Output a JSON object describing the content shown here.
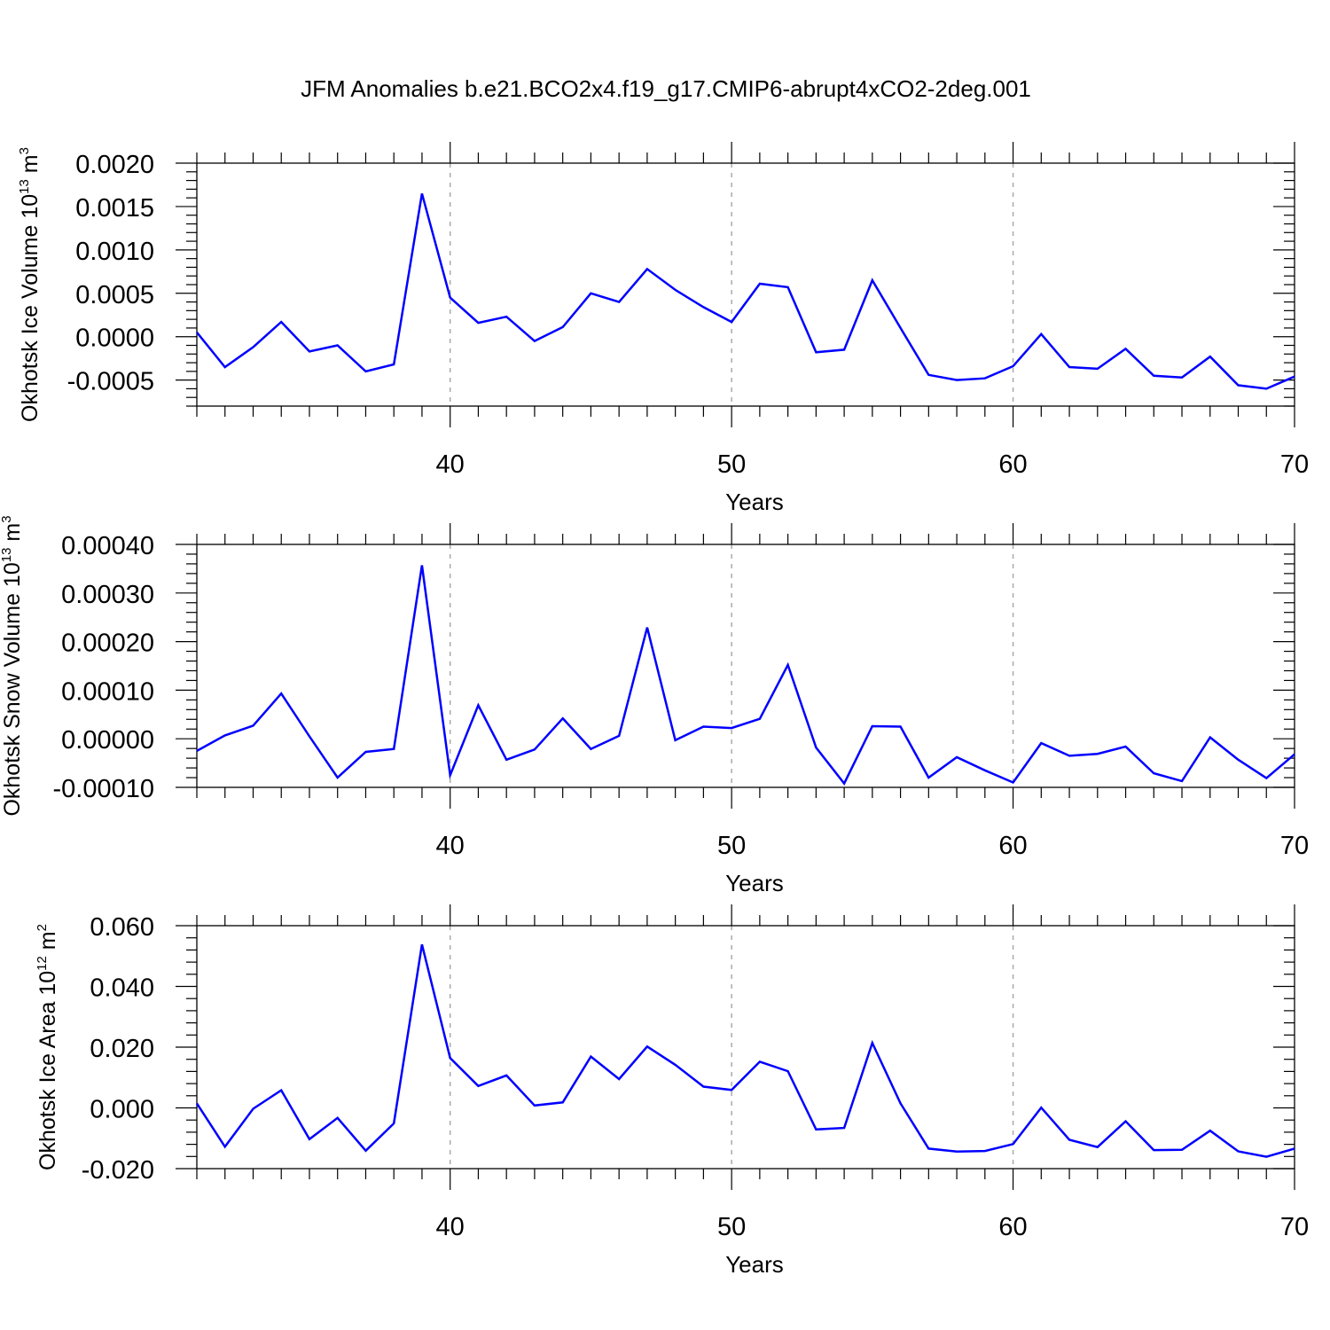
{
  "figure": {
    "title": "JFM Anomalies b.e21.BCO2x4.f19_g17.CMIP6-abrupt4xCO2-2deg.001"
  },
  "chart_data": [
    {
      "type": "line",
      "xlabel": "Years",
      "ylabel_text": "Okhotsk Ice Volume 10",
      "ylabel_exp": "13",
      "ylabel_unit": " m",
      "ylabel_unit_exp": "3",
      "xlim": [
        31,
        70
      ],
      "ylim": [
        -0.0008,
        0.002
      ],
      "xticks": [
        40,
        50,
        60,
        70
      ],
      "xtick_labels": [
        "40",
        "50",
        "60",
        "70"
      ],
      "yticks": [
        -0.0005,
        0,
        0.0005,
        0.001,
        0.0015,
        0.002
      ],
      "ytick_labels": [
        "-0.0005",
        "0.0000",
        "0.0005",
        "0.0010",
        "0.0015",
        "0.0020"
      ],
      "ydecimals": 4,
      "grid": "vertical dashed at major x ticks",
      "line_color": "#0000ff",
      "x": [
        31,
        32,
        33,
        34,
        35,
        36,
        37,
        38,
        39,
        40,
        41,
        42,
        43,
        44,
        45,
        46,
        47,
        48,
        49,
        50,
        51,
        52,
        53,
        54,
        55,
        56,
        57,
        58,
        59,
        60,
        61,
        62,
        63,
        64,
        65,
        66,
        67,
        68,
        69,
        70
      ],
      "values": [
        5e-05,
        -0.00035,
        -0.00012,
        0.00017,
        -0.00017,
        -0.0001,
        -0.0004,
        -0.00032,
        0.00165,
        0.00045,
        0.00016,
        0.00023,
        -5e-05,
        0.00011,
        0.0005,
        0.0004,
        0.00078,
        0.00054,
        0.00034,
        0.00017,
        0.00061,
        0.00057,
        -0.00018,
        -0.00015,
        0.00065,
        0.0001,
        -0.00044,
        -0.0005,
        -0.00048,
        -0.00034,
        3e-05,
        -0.00035,
        -0.00037,
        -0.00014,
        -0.00045,
        -0.00047,
        -0.00023,
        -0.00056,
        -0.0006,
        -0.00046
      ]
    },
    {
      "type": "line",
      "xlabel": "Years",
      "ylabel_text": "Okhotsk Snow Volume 10",
      "ylabel_exp": "13",
      "ylabel_unit": " m",
      "ylabel_unit_exp": "3",
      "xlim": [
        31,
        70
      ],
      "ylim": [
        -0.0001,
        0.0004
      ],
      "xticks": [
        40,
        50,
        60,
        70
      ],
      "xtick_labels": [
        "40",
        "50",
        "60",
        "70"
      ],
      "yticks": [
        -0.0001,
        0,
        0.0001,
        0.0002,
        0.0003,
        0.0004
      ],
      "ytick_labels": [
        "-0.00010",
        "0.00000",
        "0.00010",
        "0.00020",
        "0.00030",
        "0.00040"
      ],
      "ydecimals": 5,
      "grid": "vertical dashed at major x ticks",
      "line_color": "#0000ff",
      "x": [
        31,
        32,
        33,
        34,
        35,
        36,
        37,
        38,
        39,
        40,
        41,
        42,
        43,
        44,
        45,
        46,
        47,
        48,
        49,
        50,
        51,
        52,
        53,
        54,
        55,
        56,
        57,
        58,
        59,
        60,
        61,
        62,
        63,
        64,
        65,
        66,
        67,
        68,
        69,
        70
      ],
      "values": [
        -2.5e-05,
        7e-06,
        2.7e-05,
        9.3e-05,
        5e-06,
        -8e-05,
        -2.7e-05,
        -2.1e-05,
        0.000357,
        -7.5e-05,
        6.9e-05,
        -4.3e-05,
        -2.2e-05,
        4.2e-05,
        -2.1e-05,
        6e-06,
        0.000229,
        -3e-06,
        2.5e-05,
        2.2e-05,
        4.1e-05,
        0.000152,
        -1.8e-05,
        -9.2e-05,
        2.6e-05,
        2.5e-05,
        -8e-05,
        -3.8e-05,
        -6.5e-05,
        -9e-05,
        -9e-06,
        -3.5e-05,
        -3.1e-05,
        -1.6e-05,
        -7.1e-05,
        -8.7e-05,
        3e-06,
        -4.3e-05,
        -8.1e-05,
        -3.2e-05
      ]
    },
    {
      "type": "line",
      "xlabel": "Years",
      "ylabel_text": "Okhotsk Ice Area 10",
      "ylabel_exp": "12",
      "ylabel_unit": " m",
      "ylabel_unit_exp": "2",
      "xlim": [
        31,
        70
      ],
      "ylim": [
        -0.02,
        0.06
      ],
      "xticks": [
        40,
        50,
        60,
        70
      ],
      "xtick_labels": [
        "40",
        "50",
        "60",
        "70"
      ],
      "yticks": [
        -0.02,
        0,
        0.02,
        0.04,
        0.06
      ],
      "ytick_labels": [
        "-0.020",
        "0.000",
        "0.020",
        "0.040",
        "0.060"
      ],
      "ydecimals": 3,
      "grid": "vertical dashed at major x ticks",
      "line_color": "#0000ff",
      "x": [
        31,
        32,
        33,
        34,
        35,
        36,
        37,
        38,
        39,
        40,
        41,
        42,
        43,
        44,
        45,
        46,
        47,
        48,
        49,
        50,
        51,
        52,
        53,
        54,
        55,
        56,
        57,
        58,
        59,
        60,
        61,
        62,
        63,
        64,
        65,
        66,
        67,
        68,
        69,
        70
      ],
      "values": [
        0.0015,
        -0.0128,
        -0.0003,
        0.0058,
        -0.0103,
        -0.0033,
        -0.0141,
        -0.0051,
        0.0538,
        0.0164,
        0.0072,
        0.0107,
        0.0008,
        0.0018,
        0.0169,
        0.0095,
        0.0202,
        0.0142,
        0.007,
        0.0059,
        0.0152,
        0.0121,
        -0.0071,
        -0.0066,
        0.0214,
        0.0015,
        -0.0134,
        -0.0144,
        -0.0142,
        -0.0119,
        0.0001,
        -0.0105,
        -0.0129,
        -0.0044,
        -0.0139,
        -0.0138,
        -0.0075,
        -0.0143,
        -0.0161,
        -0.0134
      ]
    }
  ]
}
